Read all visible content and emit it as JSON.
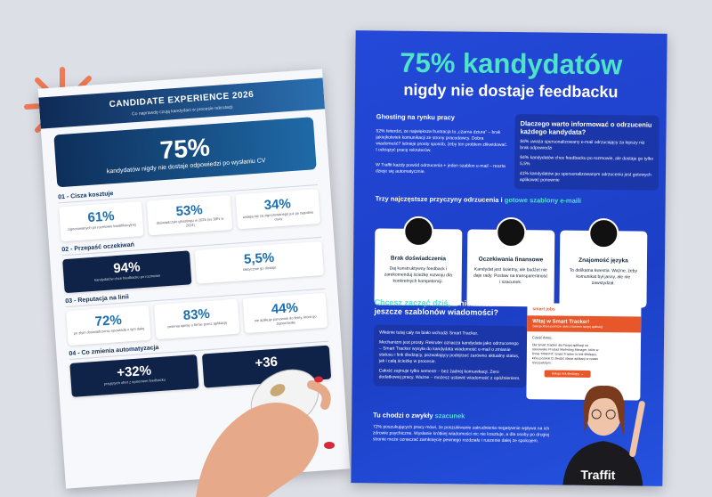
{
  "left_doc": {
    "title": "CANDIDATE EXPERIENCE 2026",
    "subtitle": "Co naprawdę czują kandydaci w procesie rekrutacji",
    "hero": {
      "stat": "75%",
      "text": "kandydatów nigdy nie dostaje odpowiedzi po wysłaniu CV"
    },
    "sections": [
      {
        "heading": "01 - Cisza kosztuje",
        "cards": [
          {
            "stat": "61%",
            "text": "zignorowanych po rozmowie kwalifikacyjnej"
          },
          {
            "stat": "53%",
            "text": "doświadczyło ghostingu w 2025 (vs 38% w 2024)"
          },
          {
            "stat": "34%",
            "text": "uwaga się za zignorowanego już po tygodniu ciszy"
          }
        ]
      },
      {
        "heading": "02 - Przepaść oczekiwań",
        "cards": [
          {
            "stat": "94%",
            "text": "kandydatów chce feedbacku po rozmowie"
          },
          {
            "stat": "5,5%",
            "text": "faktycznie go dostaje"
          }
        ]
      },
      {
        "heading": "03 - Reputacja na linii",
        "cards": [
          {
            "stat": "72%",
            "text": "po złym doświadczeniu opowiada o tym dalej"
          },
          {
            "stat": "83%",
            "text": "zmienia opinię o firmie przez aplikację"
          },
          {
            "stat": "44%",
            "text": "nie aplikuje ponownie do firmy, która go zignorowała"
          }
        ]
      },
      {
        "heading": "04 - Co zmienia automatyzacja",
        "cards": [
          {
            "stat": "+32%",
            "text": "przyjętych ofert z systemem feedbacku"
          },
          {
            "stat": "+36",
            "text": ""
          }
        ]
      }
    ]
  },
  "right_doc": {
    "headline": "75% kandydatów",
    "subheadline": "nigdy nie dostaje feedbacku",
    "ghosting": {
      "heading": "Ghosting na rynku pracy",
      "p1": "52% twierdzi, że największa frustracja to „czarna dziura” – brak jakiejkolwiek komunikacji ze strony pracodawcy. Dobra wiadomość? Istnieje prosty sposób, żeby ten problem zlikwidować. I odciążyć pracę rekruterów.",
      "p2": "W Traffit każdy powód odrzucenia + jeden szablon e-mail – reszta dzieje się automatycznie."
    },
    "why": {
      "heading": "Dlaczego warto informować o odrzuceniu każdego kandydata?",
      "bullets": [
        "84% uważa spersonalizowany e-mail odrzucający za lepszy niż brak odpowiedzi",
        "94% kandydatów chce feedbacku po rozmowie, ale dostaje go tylko 5,5%",
        "41% kandydatów po spersonalizowanym odrzuceniu jest gotowych aplikować ponownie"
      ]
    },
    "reasons_heading": "Trzy najczęstsze przyczyny odrzucenia i",
    "reasons_heading_accent": "gotowe szablony e-maili",
    "reasons": [
      {
        "title": "Brak doświadczenia",
        "text": "Daj konstruktywny feedback i zarekomenduj ścieżkę rozwoju dla konkretnych kompetencji."
      },
      {
        "title": "Oczekiwania finansowe",
        "text": "Kandydat jest świetny, ale budżet nie daje rady. Postaw na transparentność i szacunek."
      },
      {
        "title": "Znajomość języka",
        "text": "To delikatna kwestia. Ważne, żeby komunikat był jasny, ale nie zawstydzał."
      }
    ],
    "cta": {
      "heading_accent": "Chcesz zacząć dziś,",
      "heading": "a nie masz jeszcze szablonów wiadomości?",
      "p1": "Właśnie tutaj cały na biało wchodzi Smart Tracker.",
      "p2": "Mechanizm jest prosty. Rekruter oznacza kandydata jako odrzuconego – Smart Tracker wysyła do kandydata wiadomość e-mail o zmianie statusu i link śledzący, pozwalający podejrzeć zarówno aktualny status, jak i całą ścieżkę w procesie.",
      "p3": "Całość zajmuje tylko semestr – bez żadnej komunikacji. Zero dodatkowej pracy. Ważne – możesz ustawić wiadomość z opóźnieniem."
    },
    "email": {
      "brand": "smart jobs",
      "title": "Witaj w Smart Tracker!",
      "sub": "Sekcja która pomoże nam z kursem twojej aplikacji",
      "greeting": "Cześć Anno,",
      "body": "Dla Smart Tracker dla Twojej aplikacji na stanowisko Product Marketing Manager, które w firmie TRAFFIT. Smart Tracker to link śledzący, który pozwoli Ci śledzić status aplikacji w czasie rzeczywistym.",
      "button": "Sekcja link śledzący →"
    },
    "respect": {
      "heading": "Tu chodzi o zwykły",
      "heading_accent": "szacunek",
      "text": "72% poszukujących pracy mówi, że poszukiwanie zatrudnienia negatywnie wpływa na ich zdrowie psychiczne. Wysłanie krótkiej wiadomości nic nie kosztuje, a dla osoby po drugiej stronie może oznaczać zamknięcie pewnego rozdziału i ruszenie dalej ze spokojem."
    },
    "shirt": "Traffit"
  }
}
